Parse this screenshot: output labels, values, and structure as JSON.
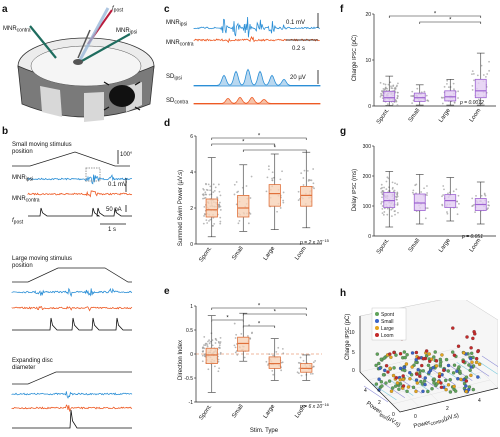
{
  "panels": {
    "a": {
      "letter": "a",
      "mnr_contra": "MNR",
      "mnr_contra_sub": "contra",
      "mnr_ipsi": "MNR",
      "mnr_ipsi_sub": "ipsi",
      "f_post": "f",
      "f_post_sub": "post"
    },
    "b": {
      "letter": "b",
      "small_stim": "Small moving stimulus",
      "small_stim_2": "position",
      "angle": "100°",
      "mnr_ipsi": "MNR",
      "mnr_ipsi_sub": "ipsi",
      "mnr_contra": "MNR",
      "mnr_contra_sub": "contra",
      "f_post": "f",
      "f_post_sub": "post",
      "scale_mv": "0.1 mV",
      "scale_pa": "50 pA",
      "scale_s": "1 s",
      "large_stim": "Large moving stimulus",
      "large_stim_2": "position",
      "disc_stim": "Expanding disc",
      "disc_stim_2": "diameter"
    },
    "c": {
      "letter": "c",
      "mnr_ipsi": "MNR",
      "mnr_ipsi_sub": "ipsi",
      "mnr_contra": "MNR",
      "mnr_contra_sub": "contra",
      "scale_mv": "0.1 mV",
      "scale_s": "0.2 s",
      "sd_ipsi": "SD",
      "sd_ipsi_sub": "ipsi",
      "sd_contra": "SD",
      "sd_contra_sub": "contra",
      "scale_uv": "20 µV"
    },
    "d": {
      "letter": "d",
      "ylabel": "Summed Swim Power (µV.s)",
      "pvalue": "p = 2 x 10",
      "pvalue_exp": "−15"
    },
    "e": {
      "letter": "e",
      "ylabel": "Direction Index",
      "xlabel": "Stim. Type",
      "pvalue": "p = 6 x 10",
      "pvalue_exp": "−16"
    },
    "f": {
      "letter": "f",
      "ylabel": "Charge",
      "ylabel_sub": "IPSC",
      "ylabel_unit": "(pC)",
      "pvalue": "p = 0.0012"
    },
    "g": {
      "letter": "g",
      "ylabel": "Delay",
      "ylabel_sub": "IPSC",
      "ylabel_unit": "(ms)",
      "pvalue": "p = 0.051"
    },
    "h": {
      "letter": "h",
      "zlabel": "Charge",
      "zlabel_sub": "IPSC",
      "zlabel_unit": "(pC)",
      "xlabel": "Power",
      "xlabel_sub": "ipsi",
      "xlabel_unit": "(µV.s)",
      "ylabel": "Power",
      "ylabel_sub": "contra",
      "ylabel_unit": "(µV.s)"
    }
  },
  "colors": {
    "ipsi": "#2b8fd6",
    "contra": "#ee5a24",
    "orange_box": "#e0703a",
    "purple_box": "#9d62d1",
    "spont": "#5fa35a",
    "small": "#3a64c8",
    "large": "#e4a51e",
    "loom": "#c42a2a"
  },
  "chart_data": [
    {
      "type": "box",
      "panel": "d",
      "categories": [
        "Spont.",
        "Small",
        "Large",
        "Loom"
      ],
      "ylabel": "Summed Swim Power (µV.s)",
      "ylim": [
        0,
        6
      ],
      "yticks": [
        0,
        2,
        4,
        6
      ],
      "boxes": [
        {
          "q1": 1.5,
          "median": 1.9,
          "q3": 2.5,
          "lo": 0.4,
          "hi": 4.8
        },
        {
          "q1": 1.5,
          "median": 2.0,
          "q3": 2.7,
          "lo": 0.7,
          "hi": 4.4
        },
        {
          "q1": 2.1,
          "median": 2.8,
          "q3": 3.3,
          "lo": 0.8,
          "hi": 5.0
        },
        {
          "q1": 2.1,
          "median": 2.7,
          "q3": 3.2,
          "lo": 0.9,
          "hi": 5.1
        }
      ],
      "significance": [
        [
          "Spont.",
          "Loom"
        ],
        [
          "Spont.",
          "Large"
        ],
        [
          "Small",
          "Loom"
        ]
      ],
      "pvalue": "p = 2 x 10−15"
    },
    {
      "type": "box",
      "panel": "e",
      "categories": [
        "Spont.",
        "Small",
        "Large",
        "Loom"
      ],
      "ylabel": "Direction Index",
      "xlabel": "Stim. Type",
      "ylim": [
        -1,
        1
      ],
      "yticks": [
        -1,
        -0.5,
        0,
        0.5,
        1
      ],
      "boxes": [
        {
          "q1": -0.2,
          "median": -0.02,
          "q3": 0.12,
          "lo": -0.8,
          "hi": 0.8
        },
        {
          "q1": 0.06,
          "median": 0.22,
          "q3": 0.35,
          "lo": -0.15,
          "hi": 0.85
        },
        {
          "q1": -0.3,
          "median": -0.2,
          "q3": -0.06,
          "lo": -0.55,
          "hi": 0.32
        },
        {
          "q1": -0.38,
          "median": -0.3,
          "q3": -0.2,
          "lo": -0.55,
          "hi": -0.02
        }
      ],
      "significance": [
        [
          "Spont.",
          "Loom"
        ],
        [
          "Small",
          "Loom"
        ],
        [
          "Spont.",
          "Small"
        ],
        [
          "Small",
          "Large"
        ]
      ],
      "pvalue": "p = 6 x 10−16"
    },
    {
      "type": "box",
      "panel": "f",
      "categories": [
        "Spont.",
        "Small",
        "Large",
        "Loom"
      ],
      "ylabel": "Charge IPSC (pC)",
      "ylim": [
        0,
        20
      ],
      "yticks": [
        0,
        10,
        20
      ],
      "boxes": [
        {
          "q1": 1.0,
          "median": 1.8,
          "q3": 3.2,
          "lo": 0.1,
          "hi": 6.5
        },
        {
          "q1": 1.0,
          "median": 1.8,
          "q3": 2.8,
          "lo": 0.2,
          "hi": 4.6
        },
        {
          "q1": 1.1,
          "median": 2.0,
          "q3": 3.3,
          "lo": 0.2,
          "hi": 5.8
        },
        {
          "q1": 1.8,
          "median": 3.3,
          "q3": 5.8,
          "lo": 0.2,
          "hi": 11.5
        }
      ],
      "significance": [
        [
          "Spont.",
          "Loom"
        ],
        [
          "Small",
          "Loom"
        ]
      ],
      "pvalue": "p = 0.0012"
    },
    {
      "type": "box",
      "panel": "g",
      "categories": [
        "Spont.",
        "Small",
        "Large",
        "Loom"
      ],
      "ylabel": "Delay IPSC (ms)",
      "ylim": [
        0,
        300
      ],
      "yticks": [
        0,
        100,
        200,
        300
      ],
      "boxes": [
        {
          "q1": 95,
          "median": 118,
          "q3": 145,
          "lo": 30,
          "hi": 215
        },
        {
          "q1": 85,
          "median": 110,
          "q3": 140,
          "lo": 40,
          "hi": 205
        },
        {
          "q1": 95,
          "median": 118,
          "q3": 138,
          "lo": 50,
          "hi": 195
        },
        {
          "q1": 85,
          "median": 105,
          "q3": 125,
          "lo": 40,
          "hi": 180
        }
      ],
      "pvalue": "p = 0.051"
    },
    {
      "type": "scatter3d",
      "panel": "h",
      "legend": [
        "Spont",
        "Small",
        "Large",
        "Loom"
      ],
      "zlabel": "Charge IPSC (pC)",
      "zticks": [
        0,
        5,
        10
      ],
      "xlabel": "Power ipsi (µV.s)",
      "xticks": [
        0,
        2,
        4
      ],
      "ylabel": "Power contra (µV.s)",
      "yticks": [
        0,
        2,
        4
      ]
    }
  ]
}
